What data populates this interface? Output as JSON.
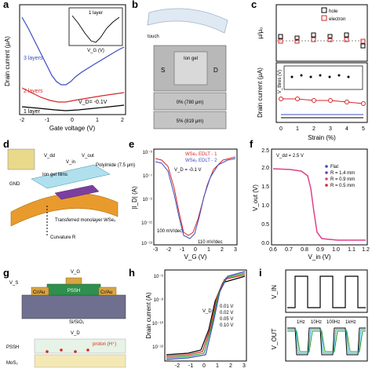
{
  "panels": {
    "a": {
      "letter": "a",
      "xlabel": "Gate voltage (V)",
      "ylabel": "Drain current (μA)",
      "xticks": [
        "-2",
        "-1",
        "0",
        "1",
        "2"
      ],
      "yticks": [
        "0",
        "10",
        "20",
        "30",
        "40",
        "50"
      ],
      "labels": {
        "l3": "3 layers",
        "l2": "2 layers",
        "l1": "1 layer",
        "vd": "V_D= -0.1V"
      },
      "inset": {
        "title": "1 layer",
        "ylabel": "I_D (μA)",
        "xlabel": "V_G (V)",
        "yticks": [
          "0.0",
          "0.5",
          "1.0",
          "1.5"
        ],
        "xticks": [
          "-2",
          "0",
          "2"
        ]
      }
    },
    "b": {
      "letter": "b",
      "touch": "touch",
      "iongel": "Ion gel",
      "s": "S",
      "d": "D",
      "strain0": "0% (780 μm)",
      "strain5": "5% (819 μm)"
    },
    "c": {
      "letter": "c",
      "ylabel_top": "μ/μ₀",
      "ylabel_bot": "Drain current (μA)",
      "xlabel": "Strain (%)",
      "legend": [
        "hole",
        "electron"
      ],
      "xticks": [
        "0",
        "1",
        "2",
        "3",
        "4",
        "5"
      ],
      "yticks_top": [
        "0.8",
        "0.9",
        "1.0",
        "1.1",
        "1.2"
      ],
      "yticks_bot": [
        "0",
        "5",
        "10",
        "15",
        "20"
      ],
      "inset_ylabel": "V_thres (V)",
      "inset_yticks": [
        "-1",
        "0",
        "1"
      ],
      "inset_xticks": [
        "0",
        "1",
        "2",
        "3",
        "4",
        "5"
      ]
    },
    "d": {
      "letter": "d",
      "labels": [
        "Ion gel films",
        "Polyimide (7.5 μm)",
        "GND",
        "Transferred monolayer WSe₂",
        "Curvature R",
        "V_dd",
        "V_out",
        "V_in"
      ]
    },
    "e": {
      "letter": "e",
      "xlabel": "V_G (V)",
      "ylabel": "|I_D| (A)",
      "legend": [
        "WSe₂ EDLT - 1",
        "WSe₂ EDLT - 2"
      ],
      "vd": "V_D = -0.1 V",
      "ss1": "100 mV/dec",
      "ss2": "110 mV/dec",
      "xticks": [
        "-3",
        "-2",
        "-1",
        "0",
        "1",
        "2",
        "3"
      ],
      "yticks": [
        "10⁻¹³",
        "10⁻¹²",
        "10⁻¹¹",
        "10⁻¹⁰",
        "10⁻⁹",
        "10⁻⁸",
        "10⁻⁷",
        "10⁻⁶",
        "10⁻⁵"
      ]
    },
    "f": {
      "letter": "f",
      "xlabel": "V_in (V)",
      "ylabel": "V_out (V)",
      "vdd": "V_dd = 2.5 V",
      "legend": [
        "Flat",
        "R = 1.4 mm",
        "R = 0.9 mm",
        "R = 0.5 mm"
      ],
      "xticks": [
        "0.6",
        "0.7",
        "0.8",
        "0.9",
        "1.0",
        "1.1",
        "1.2"
      ],
      "yticks": [
        "0.0",
        "0.5",
        "1.0",
        "1.5",
        "2.0",
        "2.5"
      ]
    },
    "g": {
      "letter": "g",
      "vg": "V_G",
      "vs": "V_S",
      "vd": "V_D",
      "pssh": "PSSH",
      "crau": "Cr/Au",
      "sub": "Si/SiO₂",
      "bottom": [
        "PSSH",
        "MoS₂"
      ],
      "proton": "proton (H⁺)"
    },
    "h": {
      "letter": "h",
      "ylabel": "Drain current (A)",
      "xlabel": "Gate voltage (V)",
      "vd": "V_D =",
      "legend": [
        "0.01 V",
        "0.02 V",
        "0.05 V",
        "0.10 V"
      ],
      "xticks": [
        "-2",
        "-1",
        "0",
        "1",
        "2",
        "3"
      ],
      "yticks": [
        "10⁻¹²",
        "10⁻¹⁰",
        "10⁻⁸",
        "10⁻⁶"
      ]
    },
    "i": {
      "letter": "i",
      "vin": "V_IN",
      "vout": "V_OUT",
      "freq": [
        "1Hz",
        "10Hz",
        "100Hz",
        "1kHz"
      ]
    }
  },
  "colors": {
    "blue": "#3b4cc0",
    "red": "#d62728",
    "black": "#000000",
    "orange": "#e89b2c",
    "purple": "#7b3fa0",
    "pink": "#e0408a",
    "green": "#2ca02c",
    "cyan": "#2aa7c9"
  }
}
